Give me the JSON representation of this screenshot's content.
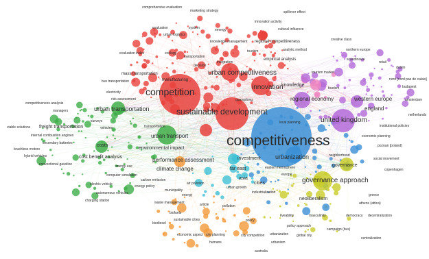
{
  "colors": {
    "red": "#e8413c",
    "green": "#3fae49",
    "blue": "#3b8fd6",
    "purple": "#b36ad8",
    "yellow": "#c9cc2a",
    "orange": "#f39a3a",
    "cyan": "#3fc1d6",
    "pink": "#ef86c1",
    "background": "#ffffff"
  },
  "clusters": {
    "red": {
      "terms": [
        {
          "label": "competition",
          "weight": 5
        },
        {
          "label": "sustainable development",
          "weight": 4
        },
        {
          "label": "urban competitiveness",
          "weight": 3
        },
        {
          "label": "innovation",
          "weight": 3
        },
        {
          "label": "manufacturing",
          "weight": 1
        },
        {
          "label": "comprehensive evaluation",
          "weight": 1
        },
        {
          "label": "marketing strategy",
          "weight": 1
        },
        {
          "label": "evaluation",
          "weight": 1
        },
        {
          "label": "system",
          "weight": 1
        },
        {
          "label": "urban logistics",
          "weight": 1
        },
        {
          "label": "spillover effect",
          "weight": 1
        },
        {
          "label": "innovation activity",
          "weight": 1
        },
        {
          "label": "cultural influence",
          "weight": 1
        },
        {
          "label": "knowledge management",
          "weight": 1
        },
        {
          "label": "regional competitiveness",
          "weight": 1
        },
        {
          "label": "analytic method",
          "weight": 1
        },
        {
          "label": "empirical analysis",
          "weight": 1
        },
        {
          "label": "evaluation index",
          "weight": 1
        },
        {
          "label": "ecology",
          "weight": 1
        },
        {
          "label": "emergy",
          "weight": 1
        },
        {
          "label": "mass transportation",
          "weight": 1
        },
        {
          "label": "bus transportation",
          "weight": 1
        },
        {
          "label": "electricity",
          "weight": 1
        },
        {
          "label": "risk assessment",
          "weight": 1
        },
        {
          "label": "transportation",
          "weight": 1
        },
        {
          "label": "decision",
          "weight": 1
        },
        {
          "label": "guangdong",
          "weight": 1
        },
        {
          "label": "integration",
          "weight": 1
        },
        {
          "label": "tourism",
          "weight": 1
        }
      ]
    },
    "green": {
      "terms": [
        {
          "label": "urban transportation",
          "weight": 2
        },
        {
          "label": "urban transport",
          "weight": 2
        },
        {
          "label": "freight transportation",
          "weight": 1
        },
        {
          "label": "competitiveness analysis",
          "weight": 1
        },
        {
          "label": "managers",
          "weight": 1
        },
        {
          "label": "surveys",
          "weight": 1
        },
        {
          "label": "viable solutions",
          "weight": 1
        },
        {
          "label": "internal combustion engines",
          "weight": 1
        },
        {
          "label": "secondary batteries",
          "weight": 1
        },
        {
          "label": "brushless motors",
          "weight": 1
        },
        {
          "label": "hybrid vehicles",
          "weight": 1
        },
        {
          "label": "conventional gasoline",
          "weight": 1
        },
        {
          "label": "costs",
          "weight": 1
        },
        {
          "label": "cost benefit analysis",
          "weight": 1
        },
        {
          "label": "environmental impact",
          "weight": 1
        },
        {
          "label": "energy use",
          "weight": 1
        },
        {
          "label": "electric vehicle",
          "weight": 1
        },
        {
          "label": "charging station",
          "weight": 1
        },
        {
          "label": "autonomous vehicles",
          "weight": 1
        },
        {
          "label": "computer simulation",
          "weight": 1
        },
        {
          "label": "carbon emission",
          "weight": 1
        },
        {
          "label": "energy policy",
          "weight": 1
        },
        {
          "label": "vehicles",
          "weight": 1
        },
        {
          "label": "transportation",
          "weight": 1
        }
      ]
    },
    "blue": {
      "terms": [
        {
          "label": "competitiveness",
          "weight": 6
        },
        {
          "label": "urbanization",
          "weight": 2
        },
        {
          "label": "local planning",
          "weight": 1
        },
        {
          "label": "neighborhood",
          "weight": 1
        },
        {
          "label": "social movement",
          "weight": 1
        },
        {
          "label": "decentralization",
          "weight": 1
        },
        {
          "label": "centralization",
          "weight": 1
        },
        {
          "label": "democracy",
          "weight": 1
        },
        {
          "label": "campaign (bus)",
          "weight": 1
        },
        {
          "label": "greece",
          "weight": 1
        },
        {
          "label": "athens (attica)",
          "weight": 1
        },
        {
          "label": "copenhagen",
          "weight": 1
        },
        {
          "label": "eastern hemisphere",
          "weight": 1
        },
        {
          "label": "europe",
          "weight": 1
        }
      ]
    },
    "purple": {
      "terms": [
        {
          "label": "regional economy",
          "weight": 2
        },
        {
          "label": "knowledge",
          "weight": 1
        },
        {
          "label": "western europe",
          "weight": 2
        },
        {
          "label": "united kingdom",
          "weight": 2
        },
        {
          "label": "england",
          "weight": 1
        },
        {
          "label": "creative class",
          "weight": 1
        },
        {
          "label": "northern europe",
          "weight": 1
        },
        {
          "label": "scandinavia",
          "weight": 1
        },
        {
          "label": "tourism market",
          "weight": 1
        },
        {
          "label": "nord [nord pas de calais]",
          "weight": 1
        },
        {
          "label": "budapest",
          "weight": 1
        },
        {
          "label": "amsterdam",
          "weight": 1
        },
        {
          "label": "netherlands",
          "weight": 1
        },
        {
          "label": "economic planning",
          "weight": 1
        },
        {
          "label": "poznan [poland]",
          "weight": 1
        },
        {
          "label": "institutional policies",
          "weight": 1
        },
        {
          "label": "retail",
          "weight": 1
        },
        {
          "label": "dublin",
          "weight": 1
        },
        {
          "label": "tourism",
          "weight": 1
        }
      ]
    },
    "yellow": {
      "terms": [
        {
          "label": "governance approach",
          "weight": 2
        },
        {
          "label": "governance",
          "weight": 1
        },
        {
          "label": "neoliberalism",
          "weight": 1
        },
        {
          "label": "policy approach",
          "weight": 1
        },
        {
          "label": "global city",
          "weight": 1
        },
        {
          "label": "urbanism",
          "weight": 1
        },
        {
          "label": "masculinity",
          "weight": 1
        },
        {
          "label": "liveability",
          "weight": 1
        },
        {
          "label": "policy",
          "weight": 1
        }
      ]
    },
    "cyan": {
      "terms": [
        {
          "label": "asia",
          "weight": 1
        },
        {
          "label": "cities",
          "weight": 1
        },
        {
          "label": "investment",
          "weight": 1
        },
        {
          "label": "far east",
          "weight": 1
        },
        {
          "label": "industrialization",
          "weight": 1
        },
        {
          "label": "air pollution",
          "weight": 1
        },
        {
          "label": "urban growth",
          "weight": 1
        },
        {
          "label": "municipality",
          "weight": 1
        }
      ]
    },
    "orange": {
      "terms": [
        {
          "label": "performance assessment",
          "weight": 1
        },
        {
          "label": "climate change",
          "weight": 1
        },
        {
          "label": "waste management",
          "weight": 1
        },
        {
          "label": "article",
          "weight": 1
        },
        {
          "label": "biofuels",
          "weight": 1
        },
        {
          "label": "sustainable cities",
          "weight": 1
        },
        {
          "label": "biodiesel",
          "weight": 1
        },
        {
          "label": "economic aspect",
          "weight": 1
        },
        {
          "label": "city planning",
          "weight": 1
        },
        {
          "label": "humans",
          "weight": 1
        },
        {
          "label": "city competition",
          "weight": 1
        },
        {
          "label": "urbanization",
          "weight": 1
        },
        {
          "label": "australia",
          "weight": 1
        },
        {
          "label": "pollution",
          "weight": 1
        },
        {
          "label": "energy",
          "weight": 1
        }
      ]
    }
  }
}
